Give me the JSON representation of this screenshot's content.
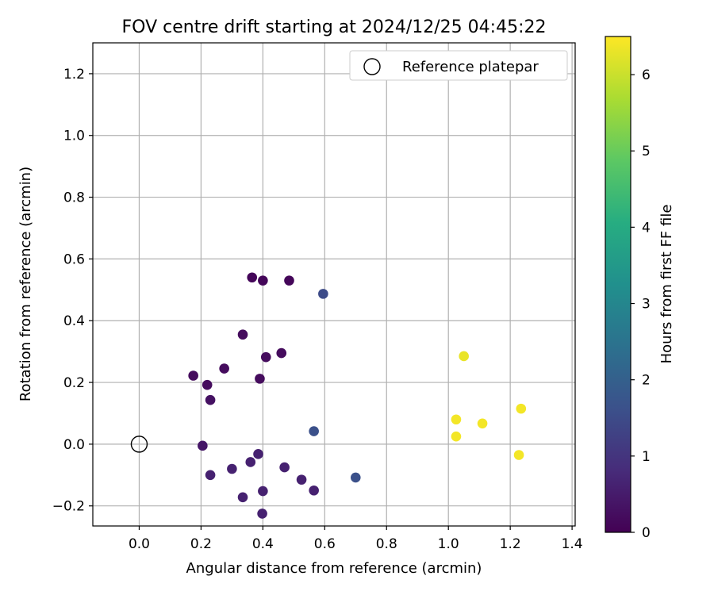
{
  "chart_data": {
    "type": "scatter",
    "title": "FOV centre drift starting at 2024/12/25 04:45:22",
    "xlabel": "Angular distance from reference (arcmin)",
    "ylabel": "Rotation from reference (arcmin)",
    "xlim": [
      -0.15,
      1.41
    ],
    "ylim": [
      -0.265,
      1.3
    ],
    "xticks": [
      0.0,
      0.2,
      0.4,
      0.6,
      0.8,
      1.0,
      1.2,
      1.4
    ],
    "xtick_labels": [
      "0.0",
      "0.2",
      "0.4",
      "0.6",
      "0.8",
      "1.0",
      "1.2",
      "1.4"
    ],
    "yticks": [
      -0.2,
      0.0,
      0.2,
      0.4,
      0.6,
      0.8,
      1.0,
      1.2
    ],
    "ytick_labels": [
      "−0.2",
      "0.0",
      "0.2",
      "0.4",
      "0.6",
      "0.8",
      "1.0",
      "1.2"
    ],
    "grid": true,
    "legend": {
      "placement": "top-right",
      "entries": [
        "Reference platepar"
      ]
    },
    "reference_point": {
      "x": 0.0,
      "y": 0.0,
      "label": "Reference platepar"
    },
    "colorbar": {
      "label": "Hours from first FF file",
      "range": [
        0,
        6.5
      ],
      "ticks": [
        0,
        1,
        2,
        3,
        4,
        5,
        6
      ],
      "tick_labels": [
        "0",
        "1",
        "2",
        "3",
        "4",
        "5",
        "6"
      ],
      "colormap": "viridis"
    },
    "points": [
      {
        "x": 0.365,
        "y": 0.54,
        "hours": 0.1
      },
      {
        "x": 0.4,
        "y": 0.53,
        "hours": 0.1
      },
      {
        "x": 0.485,
        "y": 0.53,
        "hours": 0.1
      },
      {
        "x": 0.595,
        "y": 0.487,
        "hours": 1.5
      },
      {
        "x": 0.335,
        "y": 0.355,
        "hours": 0.2
      },
      {
        "x": 0.46,
        "y": 0.295,
        "hours": 0.2
      },
      {
        "x": 0.41,
        "y": 0.282,
        "hours": 0.2
      },
      {
        "x": 0.275,
        "y": 0.245,
        "hours": 0.2
      },
      {
        "x": 0.175,
        "y": 0.222,
        "hours": 0.2
      },
      {
        "x": 0.39,
        "y": 0.212,
        "hours": 0.2
      },
      {
        "x": 0.22,
        "y": 0.192,
        "hours": 0.2
      },
      {
        "x": 0.23,
        "y": 0.143,
        "hours": 0.3
      },
      {
        "x": 0.205,
        "y": -0.005,
        "hours": 0.4
      },
      {
        "x": 0.565,
        "y": 0.042,
        "hours": 1.6
      },
      {
        "x": 0.385,
        "y": -0.032,
        "hours": 0.6
      },
      {
        "x": 0.36,
        "y": -0.058,
        "hours": 0.6
      },
      {
        "x": 0.47,
        "y": -0.075,
        "hours": 0.6
      },
      {
        "x": 0.3,
        "y": -0.08,
        "hours": 0.6
      },
      {
        "x": 0.23,
        "y": -0.1,
        "hours": 0.6
      },
      {
        "x": 0.525,
        "y": -0.115,
        "hours": 0.6
      },
      {
        "x": 0.7,
        "y": -0.108,
        "hours": 1.6
      },
      {
        "x": 0.565,
        "y": -0.15,
        "hours": 0.6
      },
      {
        "x": 0.4,
        "y": -0.152,
        "hours": 0.6
      },
      {
        "x": 0.335,
        "y": -0.172,
        "hours": 0.6
      },
      {
        "x": 0.398,
        "y": -0.225,
        "hours": 0.6
      },
      {
        "x": 1.05,
        "y": 0.285,
        "hours": 6.3
      },
      {
        "x": 1.235,
        "y": 0.115,
        "hours": 6.4
      },
      {
        "x": 1.025,
        "y": 0.08,
        "hours": 6.4
      },
      {
        "x": 1.11,
        "y": 0.067,
        "hours": 6.4
      },
      {
        "x": 1.025,
        "y": 0.025,
        "hours": 6.4
      },
      {
        "x": 1.228,
        "y": -0.035,
        "hours": 6.4
      }
    ]
  }
}
